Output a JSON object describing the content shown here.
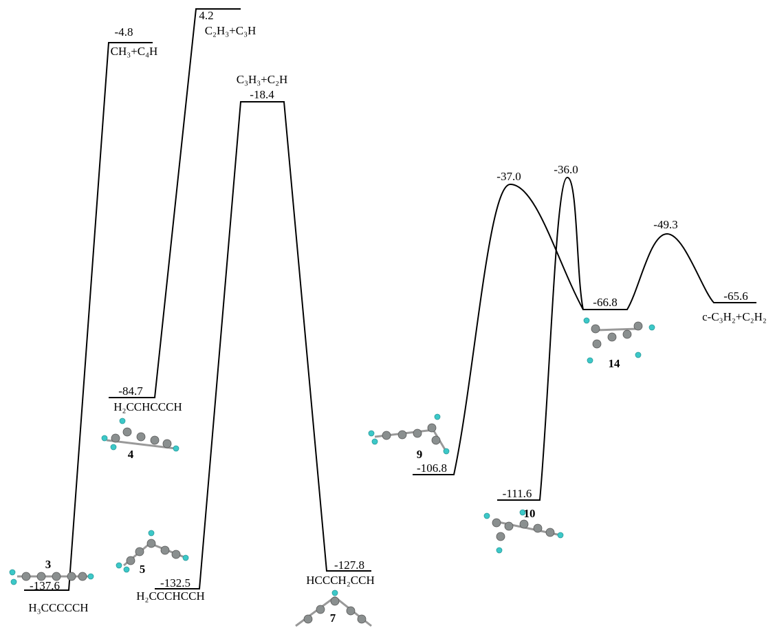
{
  "levels": [
    {
      "id": "3",
      "energy": "-137.6",
      "label": "H₃CCCCCH"
    },
    {
      "energy": "-4.8",
      "label": "CH₃+C₄H"
    },
    {
      "id": "4",
      "energy": "-84.7",
      "label": "H₂CCHCCCH"
    },
    {
      "energy": "4.2",
      "label": "C₂H₃+C₃H"
    },
    {
      "id": "5",
      "energy": "-132.5",
      "label": "H₂CCCHCCH"
    },
    {
      "energy": "-18.4",
      "label": "C₃H₃+C₂H"
    },
    {
      "id": "7",
      "energy": "-127.8",
      "label": "HCCCH₂CCH"
    },
    {
      "id": "9",
      "energy": "-106.8"
    },
    {
      "id": "10",
      "energy": "-111.6"
    },
    {
      "id": "14",
      "energy": "-66.8"
    },
    {
      "energy": "-65.6",
      "label": "c-C₃H₂+C₂H₂"
    }
  ],
  "transition_states": [
    {
      "energy": "-37.0"
    },
    {
      "energy": "-36.0"
    },
    {
      "energy": "-49.3"
    }
  ]
}
